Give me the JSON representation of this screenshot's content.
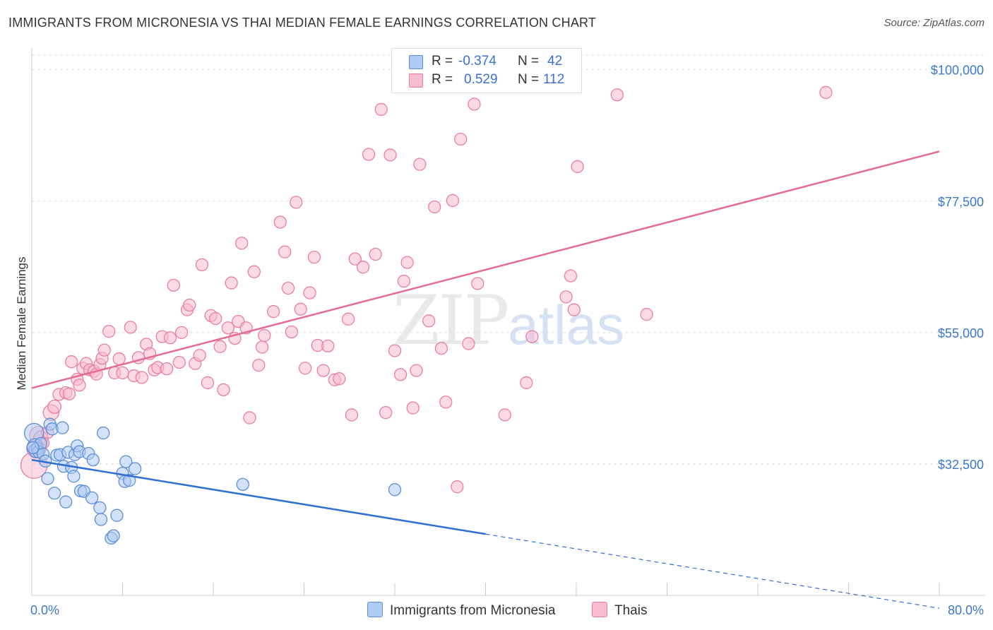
{
  "title": "IMMIGRANTS FROM MICRONESIA VS THAI MEDIAN FEMALE EARNINGS CORRELATION CHART",
  "source": "Source: ZipAtlas.com",
  "watermark": {
    "zip": "ZIP",
    "atlas": "atlas"
  },
  "legend": {
    "rows": [
      {
        "r_label": "R =",
        "r_value": "-0.374",
        "n_label": "N =",
        "n_value": "42"
      },
      {
        "r_label": "R =",
        "r_value": "0.529",
        "n_label": "N =",
        "n_value": "112"
      }
    ]
  },
  "bottom_legend": {
    "micronesia": "Immigrants from Micronesia",
    "thais": "Thais"
  },
  "colors": {
    "micronesia_fill": "#aecbf3",
    "micronesia_stroke": "#5b8fd8",
    "micronesia_line": "#2f6fd3",
    "thai_fill": "#f7bcd0",
    "thai_stroke": "#e87fa3",
    "thai_line": "#e36b98",
    "tick_text": "#3b78c9",
    "grid": "#dddddd"
  },
  "chart_data": {
    "type": "scatter",
    "title": "IMMIGRANTS FROM MICRONESIA VS THAI MEDIAN FEMALE EARNINGS CORRELATION CHART",
    "xlabel": "",
    "ylabel": "Median Female Earnings",
    "xlim": [
      0,
      80
    ],
    "ylim": [
      10000,
      102500
    ],
    "x_tick_labels": [
      "0.0%",
      "80.0%"
    ],
    "y_ticks": [
      32500,
      55000,
      77500,
      100000
    ],
    "y_tick_labels": [
      "$32,500",
      "$55,000",
      "$77,500",
      "$100,000"
    ],
    "grid": true,
    "legend_position": "top-center",
    "series": [
      {
        "name": "Immigrants from Micronesia",
        "r": -0.374,
        "n": 42,
        "trend": {
          "x0": 0,
          "y0": 33200,
          "x1": 40,
          "y1": 20500,
          "dashed_to_x": 80,
          "dashed_to_y": 7800
        },
        "points": [
          [
            0.2,
            37800,
            1.6
          ],
          [
            0.3,
            35500,
            1.3
          ],
          [
            0.4,
            34800,
            1.2
          ],
          [
            0.5,
            35200,
            1.0
          ],
          [
            0.6,
            34600,
            1.0
          ],
          [
            0.8,
            36000,
            1.0
          ],
          [
            1.0,
            34200,
            1.0
          ],
          [
            1.2,
            33000,
            1.0
          ],
          [
            1.4,
            30000,
            1.0
          ],
          [
            1.6,
            39300,
            1.0
          ],
          [
            1.8,
            38500,
            1.0
          ],
          [
            2.0,
            27500,
            1.0
          ],
          [
            2.2,
            34000,
            1.0
          ],
          [
            2.5,
            34100,
            1.0
          ],
          [
            2.7,
            38700,
            1.0
          ],
          [
            2.8,
            32100,
            1.0
          ],
          [
            3.0,
            26000,
            1.0
          ],
          [
            3.2,
            34500,
            1.0
          ],
          [
            3.5,
            31900,
            1.0
          ],
          [
            3.7,
            30400,
            1.0
          ],
          [
            3.8,
            34100,
            1.0
          ],
          [
            4.0,
            35600,
            1.0
          ],
          [
            4.2,
            34600,
            1.0
          ],
          [
            4.3,
            27900,
            1.0
          ],
          [
            4.6,
            27800,
            1.0
          ],
          [
            5.0,
            34300,
            1.0
          ],
          [
            5.3,
            26700,
            1.0
          ],
          [
            5.4,
            33200,
            1.0
          ],
          [
            6.0,
            25000,
            1.0
          ],
          [
            6.3,
            37800,
            1.0
          ],
          [
            6.1,
            23000,
            1.0
          ],
          [
            7.0,
            19800,
            1.0
          ],
          [
            7.2,
            20200,
            1.0
          ],
          [
            7.5,
            23700,
            1.0
          ],
          [
            8.0,
            30900,
            1.0
          ],
          [
            8.2,
            29500,
            1.0
          ],
          [
            8.3,
            32900,
            1.0
          ],
          [
            8.6,
            29700,
            1.0
          ],
          [
            9.1,
            31700,
            1.0
          ],
          [
            18.6,
            29000,
            1.0
          ],
          [
            32.0,
            28100,
            1.0
          ],
          [
            0.1,
            35300,
            1.0
          ]
        ]
      },
      {
        "name": "Thais",
        "r": 0.529,
        "n": 112,
        "trend": {
          "x0": 0,
          "y0": 45500,
          "x1": 80,
          "y1": 86000
        },
        "points": [
          [
            0.2,
            32300,
            2.2
          ],
          [
            0.4,
            35200,
            1.6
          ],
          [
            0.6,
            37400,
            1.5
          ],
          [
            0.8,
            36900,
            1.2
          ],
          [
            1.0,
            36100,
            1.0
          ],
          [
            1.7,
            41300,
            1.3
          ],
          [
            2.0,
            42300,
            1.1
          ],
          [
            2.4,
            44400,
            1.0
          ],
          [
            3.0,
            44700,
            1.0
          ],
          [
            3.3,
            44500,
            1.0
          ],
          [
            3.5,
            50000,
            1.0
          ],
          [
            4.0,
            47000,
            1.0
          ],
          [
            4.2,
            46000,
            1.0
          ],
          [
            4.5,
            48900,
            1.0
          ],
          [
            4.8,
            49700,
            1.0
          ],
          [
            5.1,
            48600,
            1.0
          ],
          [
            5.5,
            48400,
            1.0
          ],
          [
            5.7,
            47900,
            1.0
          ],
          [
            6.0,
            49500,
            1.0
          ],
          [
            6.2,
            50600,
            1.0
          ],
          [
            6.4,
            52000,
            1.0
          ],
          [
            6.8,
            55200,
            1.0
          ],
          [
            7.3,
            48100,
            1.0
          ],
          [
            7.7,
            50500,
            1.0
          ],
          [
            8.0,
            48100,
            1.0
          ],
          [
            8.7,
            55900,
            1.0
          ],
          [
            9.0,
            47600,
            1.0
          ],
          [
            9.4,
            50700,
            1.0
          ],
          [
            9.7,
            47300,
            1.0
          ],
          [
            10.1,
            53000,
            1.0
          ],
          [
            10.4,
            51400,
            1.0
          ],
          [
            10.8,
            48600,
            1.0
          ],
          [
            11.1,
            49000,
            1.0
          ],
          [
            11.5,
            54300,
            1.0
          ],
          [
            11.9,
            48800,
            1.0
          ],
          [
            12.2,
            54100,
            1.0
          ],
          [
            12.5,
            63100,
            1.0
          ],
          [
            13.0,
            49900,
            1.0
          ],
          [
            13.2,
            55000,
            1.0
          ],
          [
            13.7,
            58900,
            1.0
          ],
          [
            13.9,
            59700,
            1.0
          ],
          [
            14.4,
            49700,
            1.0
          ],
          [
            14.8,
            51100,
            1.0
          ],
          [
            15.0,
            66600,
            1.0
          ],
          [
            15.5,
            46400,
            1.0
          ],
          [
            15.8,
            57900,
            1.0
          ],
          [
            16.2,
            57400,
            1.0
          ],
          [
            16.6,
            52600,
            1.0
          ],
          [
            16.9,
            45200,
            1.0
          ],
          [
            17.3,
            55800,
            1.0
          ],
          [
            17.6,
            63500,
            1.0
          ],
          [
            17.9,
            54000,
            1.0
          ],
          [
            18.2,
            56900,
            1.0
          ],
          [
            18.5,
            70300,
            1.0
          ],
          [
            18.9,
            55800,
            1.0
          ],
          [
            19.2,
            40400,
            1.0
          ],
          [
            19.6,
            65400,
            1.0
          ],
          [
            20.0,
            49400,
            1.0
          ],
          [
            20.3,
            52500,
            1.0
          ],
          [
            20.5,
            54500,
            1.0
          ],
          [
            21.3,
            58600,
            1.0
          ],
          [
            21.9,
            73900,
            1.0
          ],
          [
            22.3,
            68800,
            1.0
          ],
          [
            22.6,
            62600,
            1.0
          ],
          [
            22.9,
            55100,
            1.0
          ],
          [
            23.3,
            77300,
            1.0
          ],
          [
            23.7,
            59000,
            1.0
          ],
          [
            24.1,
            48900,
            1.0
          ],
          [
            24.5,
            61800,
            1.0
          ],
          [
            24.9,
            67900,
            1.0
          ],
          [
            25.2,
            52800,
            1.0
          ],
          [
            25.7,
            48500,
            1.0
          ],
          [
            26.1,
            52700,
            1.0
          ],
          [
            26.7,
            46900,
            1.0
          ],
          [
            27.1,
            47100,
            1.0
          ],
          [
            27.9,
            57300,
            1.0
          ],
          [
            28.2,
            40900,
            1.0
          ],
          [
            28.5,
            67600,
            1.0
          ],
          [
            29.2,
            66200,
            1.0
          ],
          [
            29.7,
            85500,
            1.0
          ],
          [
            30.3,
            68400,
            1.0
          ],
          [
            30.8,
            93200,
            1.0
          ],
          [
            31.2,
            41300,
            1.0
          ],
          [
            31.6,
            85400,
            1.0
          ],
          [
            32.0,
            51900,
            1.0
          ],
          [
            32.5,
            47800,
            1.0
          ],
          [
            32.8,
            63800,
            1.0
          ],
          [
            33.1,
            67000,
            1.0
          ],
          [
            33.6,
            42100,
            1.0
          ],
          [
            33.9,
            48500,
            1.0
          ],
          [
            34.2,
            83800,
            1.0
          ],
          [
            35.0,
            57000,
            1.0
          ],
          [
            35.5,
            76500,
            1.0
          ],
          [
            36.1,
            52300,
            1.0
          ],
          [
            36.5,
            43100,
            1.0
          ],
          [
            37.1,
            77600,
            1.0
          ],
          [
            37.5,
            28600,
            1.0
          ],
          [
            37.8,
            88100,
            1.0
          ],
          [
            38.5,
            53100,
            1.0
          ],
          [
            39.0,
            94100,
            1.0
          ],
          [
            39.3,
            63400,
            1.0
          ],
          [
            41.7,
            40900,
            1.0
          ],
          [
            43.6,
            46400,
            1.0
          ],
          [
            44.1,
            54300,
            1.0
          ],
          [
            47.1,
            61100,
            1.0
          ],
          [
            47.5,
            64700,
            1.0
          ],
          [
            47.8,
            58900,
            1.0
          ],
          [
            48.1,
            83400,
            1.0
          ],
          [
            51.6,
            95700,
            1.0
          ],
          [
            54.2,
            58100,
            1.0
          ],
          [
            70.0,
            96100,
            1.0
          ],
          [
            1.4,
            37900,
            1.0
          ]
        ]
      }
    ]
  }
}
